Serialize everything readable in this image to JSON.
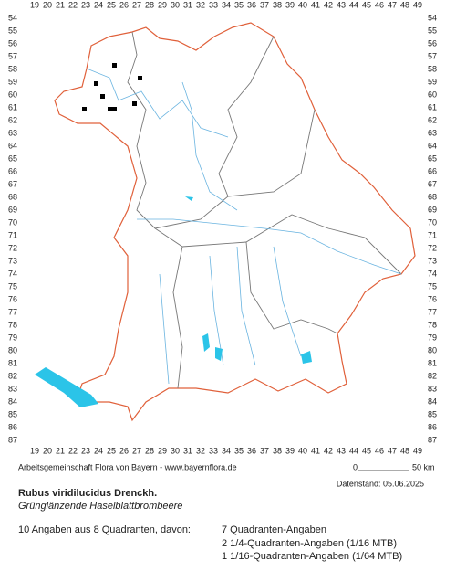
{
  "header": {
    "x_labels": [
      "19",
      "20",
      "21",
      "22",
      "23",
      "24",
      "25",
      "26",
      "27",
      "28",
      "29",
      "30",
      "31",
      "32",
      "33",
      "34",
      "35",
      "36",
      "37",
      "38",
      "39",
      "40",
      "41",
      "42",
      "43",
      "44",
      "45",
      "46",
      "47",
      "48",
      "49"
    ],
    "y_labels": [
      "54",
      "55",
      "56",
      "57",
      "58",
      "59",
      "60",
      "61",
      "62",
      "63",
      "64",
      "65",
      "66",
      "67",
      "68",
      "69",
      "70",
      "71",
      "72",
      "73",
      "74",
      "75",
      "76",
      "77",
      "78",
      "79",
      "80",
      "81",
      "82",
      "83",
      "84",
      "85",
      "86",
      "87"
    ]
  },
  "footer": {
    "credit": "Arbeitsgemeinschaft Flora von Bayern - www.bayernflora.de",
    "scale_start": "0",
    "scale_end": "50 km",
    "date": "Datenstand: 05.06.2025",
    "title": "Rubus viridilucidus Drenckh.",
    "subtitle": "Grünglänzende Haselblattbrombeere",
    "summary": "10 Angaben aus 8 Quadranten, davon:",
    "details": [
      "7 Quadranten-Angaben",
      "2 1/4-Quadranten-Angaben (1/16 MTB)",
      "1 1/16-Quadranten-Angaben (1/64 MTB)"
    ]
  }
}
